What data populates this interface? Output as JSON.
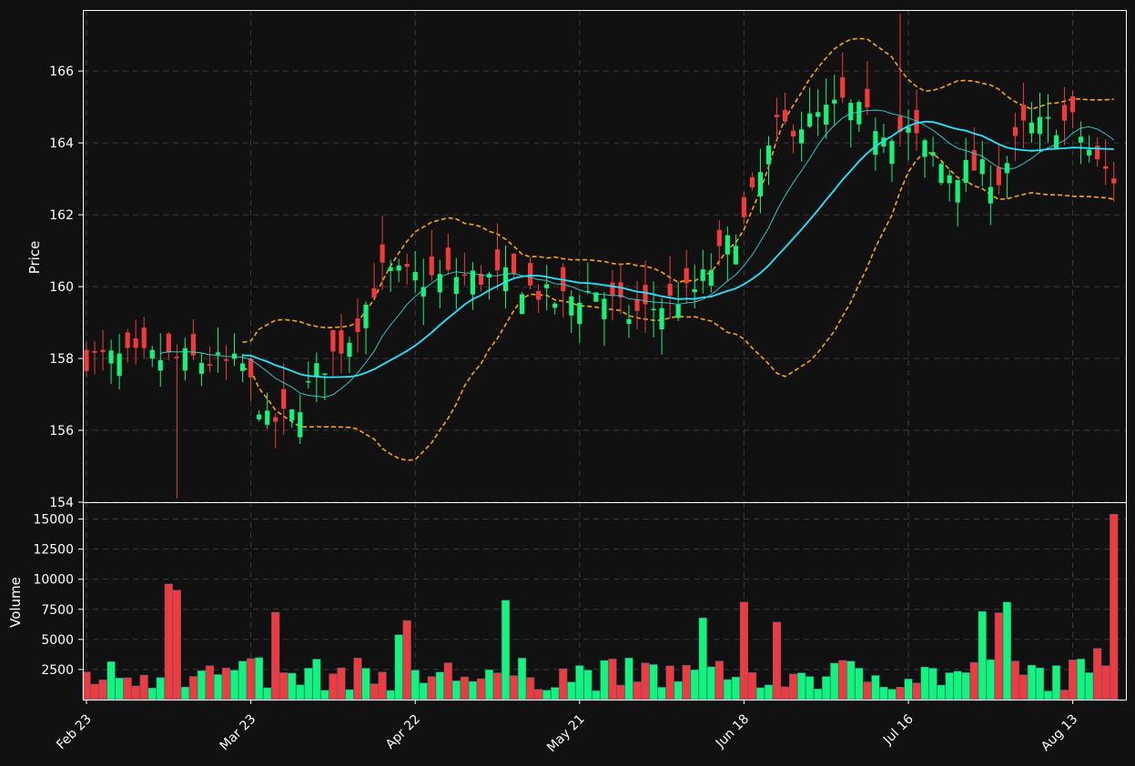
{
  "colors": {
    "background": "#111111",
    "up": "#11f57a",
    "down": "#f23a3c",
    "ma_fast": "#2fd4d4",
    "ma_slow": "#22e8ff",
    "bands": "#ffa500",
    "axis": "#ffffff",
    "grid": "#3a3a3a"
  },
  "chart_data": [
    {
      "type": "candlestick",
      "ylabel": "Price",
      "ylim": [
        154,
        167.7
      ],
      "yticks": [
        154,
        156,
        158,
        160,
        162,
        164,
        166
      ],
      "x_ticks": [
        {
          "index": 0,
          "label": "Feb 23"
        },
        {
          "index": 20,
          "label": "Mar 23"
        },
        {
          "index": 40,
          "label": "Apr 22"
        },
        {
          "index": 60,
          "label": "May 21"
        },
        {
          "index": 80,
          "label": "Jun 18"
        },
        {
          "index": 100,
          "label": "Jul 16"
        },
        {
          "index": 120,
          "label": "Aug 13"
        }
      ],
      "grid": true,
      "overlays": [
        "moving average (fast)",
        "moving average (slow)",
        "upper band",
        "lower band"
      ]
    },
    {
      "type": "bar",
      "ylabel": "Volume",
      "ylim": [
        0,
        16400
      ],
      "yticks": [
        2500,
        5000,
        7500,
        10000,
        12500,
        15000
      ],
      "grid": true
    }
  ]
}
